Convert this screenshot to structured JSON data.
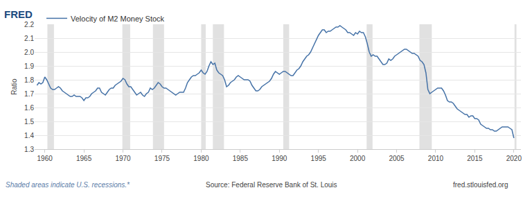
{
  "chart_data": {
    "type": "line",
    "logo": "FRED",
    "y_label": "Ratio",
    "note": "Shaded areas indicate U.S. recessions.*",
    "source": "Source: Federal Reserve Bank of St. Louis",
    "site": "fred.stlouisfed.org",
    "x": [
      1959,
      1959.25,
      1959.5,
      1959.75,
      1960,
      1960.25,
      1960.5,
      1960.75,
      1961,
      1961.25,
      1961.5,
      1961.75,
      1962,
      1962.25,
      1962.5,
      1962.75,
      1963,
      1963.25,
      1963.5,
      1963.75,
      1964,
      1964.25,
      1964.5,
      1964.75,
      1965,
      1965.25,
      1965.5,
      1965.75,
      1966,
      1966.25,
      1966.5,
      1966.75,
      1967,
      1967.25,
      1967.5,
      1967.75,
      1968,
      1968.25,
      1968.5,
      1968.75,
      1969,
      1969.25,
      1969.5,
      1969.75,
      1970,
      1970.25,
      1970.5,
      1970.75,
      1971,
      1971.25,
      1971.5,
      1971.75,
      1972,
      1972.25,
      1972.5,
      1972.75,
      1973,
      1973.25,
      1973.5,
      1973.75,
      1974,
      1974.25,
      1974.5,
      1974.75,
      1975,
      1975.25,
      1975.5,
      1975.75,
      1976,
      1976.25,
      1976.5,
      1976.75,
      1977,
      1977.25,
      1977.5,
      1977.75,
      1978,
      1978.25,
      1978.5,
      1978.75,
      1979,
      1979.25,
      1979.5,
      1979.75,
      1980,
      1980.25,
      1980.5,
      1980.75,
      1981,
      1981.25,
      1981.5,
      1981.75,
      1982,
      1982.25,
      1982.5,
      1982.75,
      1983,
      1983.25,
      1983.5,
      1983.75,
      1984,
      1984.25,
      1984.5,
      1984.75,
      1985,
      1985.25,
      1985.5,
      1985.75,
      1986,
      1986.25,
      1986.5,
      1986.75,
      1987,
      1987.25,
      1987.5,
      1987.75,
      1988,
      1988.25,
      1988.5,
      1988.75,
      1989,
      1989.25,
      1989.5,
      1989.75,
      1990,
      1990.25,
      1990.5,
      1990.75,
      1991,
      1991.25,
      1991.5,
      1991.75,
      1992,
      1992.25,
      1992.5,
      1992.75,
      1993,
      1993.25,
      1993.5,
      1993.75,
      1994,
      1994.25,
      1994.5,
      1994.75,
      1995,
      1995.25,
      1995.5,
      1995.75,
      1996,
      1996.25,
      1996.5,
      1996.75,
      1997,
      1997.25,
      1997.5,
      1997.75,
      1998,
      1998.25,
      1998.5,
      1998.75,
      1999,
      1999.25,
      1999.5,
      1999.75,
      2000,
      2000.25,
      2000.5,
      2000.75,
      2001,
      2001.25,
      2001.5,
      2001.75,
      2002,
      2002.25,
      2002.5,
      2002.75,
      2003,
      2003.25,
      2003.5,
      2003.75,
      2004,
      2004.25,
      2004.5,
      2004.75,
      2005,
      2005.25,
      2005.5,
      2005.75,
      2006,
      2006.25,
      2006.5,
      2006.75,
      2007,
      2007.25,
      2007.5,
      2007.75,
      2008,
      2008.25,
      2008.5,
      2008.75,
      2009,
      2009.25,
      2009.5,
      2009.75,
      2010,
      2010.25,
      2010.5,
      2010.75,
      2011,
      2011.25,
      2011.5,
      2011.75,
      2012,
      2012.25,
      2012.5,
      2012.75,
      2013,
      2013.25,
      2013.5,
      2013.75,
      2014,
      2014.25,
      2014.5,
      2014.75,
      2015,
      2015.25,
      2015.5,
      2015.75,
      2016,
      2016.25,
      2016.5,
      2016.75,
      2017,
      2017.25,
      2017.5,
      2017.75,
      2018,
      2018.25,
      2018.5,
      2018.75,
      2019,
      2019.25,
      2019.5,
      2019.75,
      2020
    ],
    "series": [
      {
        "name": "Velocity of M2 Money Stock",
        "color": "#4572a7",
        "values": [
          1.76,
          1.78,
          1.77,
          1.78,
          1.82,
          1.8,
          1.77,
          1.74,
          1.73,
          1.73,
          1.74,
          1.75,
          1.74,
          1.72,
          1.71,
          1.7,
          1.69,
          1.68,
          1.68,
          1.69,
          1.68,
          1.68,
          1.68,
          1.67,
          1.65,
          1.67,
          1.67,
          1.68,
          1.7,
          1.71,
          1.72,
          1.74,
          1.74,
          1.71,
          1.7,
          1.69,
          1.71,
          1.73,
          1.74,
          1.74,
          1.76,
          1.77,
          1.78,
          1.79,
          1.81,
          1.8,
          1.77,
          1.75,
          1.75,
          1.73,
          1.71,
          1.69,
          1.7,
          1.71,
          1.69,
          1.68,
          1.7,
          1.71,
          1.74,
          1.73,
          1.74,
          1.76,
          1.78,
          1.77,
          1.75,
          1.74,
          1.74,
          1.73,
          1.72,
          1.71,
          1.7,
          1.69,
          1.7,
          1.71,
          1.71,
          1.71,
          1.74,
          1.78,
          1.8,
          1.82,
          1.83,
          1.83,
          1.84,
          1.85,
          1.87,
          1.85,
          1.84,
          1.86,
          1.9,
          1.93,
          1.91,
          1.92,
          1.87,
          1.85,
          1.84,
          1.83,
          1.8,
          1.75,
          1.76,
          1.78,
          1.79,
          1.8,
          1.82,
          1.83,
          1.82,
          1.81,
          1.8,
          1.8,
          1.8,
          1.79,
          1.76,
          1.74,
          1.72,
          1.72,
          1.73,
          1.75,
          1.76,
          1.77,
          1.78,
          1.79,
          1.81,
          1.84,
          1.86,
          1.85,
          1.84,
          1.85,
          1.86,
          1.86,
          1.85,
          1.84,
          1.83,
          1.83,
          1.85,
          1.87,
          1.88,
          1.9,
          1.93,
          1.95,
          1.97,
          1.98,
          2.0,
          2.03,
          2.06,
          2.09,
          2.12,
          2.14,
          2.16,
          2.16,
          2.14,
          2.15,
          2.15,
          2.16,
          2.17,
          2.18,
          2.18,
          2.19,
          2.18,
          2.17,
          2.16,
          2.14,
          2.14,
          2.13,
          2.12,
          2.14,
          2.13,
          2.15,
          2.14,
          2.14,
          2.11,
          2.06,
          2.0,
          1.97,
          1.98,
          1.97,
          1.97,
          1.95,
          1.93,
          1.91,
          1.91,
          1.92,
          1.95,
          1.94,
          1.95,
          1.97,
          1.98,
          1.99,
          2.0,
          2.01,
          2.02,
          2.02,
          2.01,
          2.0,
          1.99,
          1.99,
          1.98,
          1.97,
          1.94,
          1.93,
          1.91,
          1.85,
          1.73,
          1.7,
          1.71,
          1.72,
          1.73,
          1.74,
          1.74,
          1.74,
          1.72,
          1.69,
          1.65,
          1.64,
          1.64,
          1.63,
          1.61,
          1.59,
          1.58,
          1.57,
          1.56,
          1.55,
          1.55,
          1.53,
          1.54,
          1.54,
          1.52,
          1.52,
          1.51,
          1.48,
          1.47,
          1.46,
          1.45,
          1.45,
          1.44,
          1.44,
          1.43,
          1.43,
          1.44,
          1.45,
          1.46,
          1.46,
          1.46,
          1.46,
          1.45,
          1.44,
          1.38
        ]
      }
    ],
    "xlim": [
      1958.7,
      2020.9
    ],
    "ylim": [
      1.3,
      2.2
    ],
    "xticks": [
      1960,
      1965,
      1970,
      1975,
      1980,
      1985,
      1990,
      1995,
      2000,
      2005,
      2010,
      2015,
      2020
    ],
    "yticks": [
      1.3,
      1.4,
      1.5,
      1.6,
      1.7,
      1.8,
      1.9,
      {
        "value": 2,
        "label": "2.0"
      },
      2.1,
      2.2
    ],
    "recessions": [
      [
        1960.33,
        1961.17
      ],
      [
        1969.92,
        1970.92
      ],
      [
        1973.83,
        1975.25
      ],
      [
        1980.0,
        1980.58
      ],
      [
        1981.5,
        1982.92
      ],
      [
        1990.5,
        1991.25
      ],
      [
        2001.17,
        2001.92
      ],
      [
        2007.92,
        2009.5
      ],
      [
        2020.08,
        2020.33
      ]
    ],
    "grid": true
  }
}
